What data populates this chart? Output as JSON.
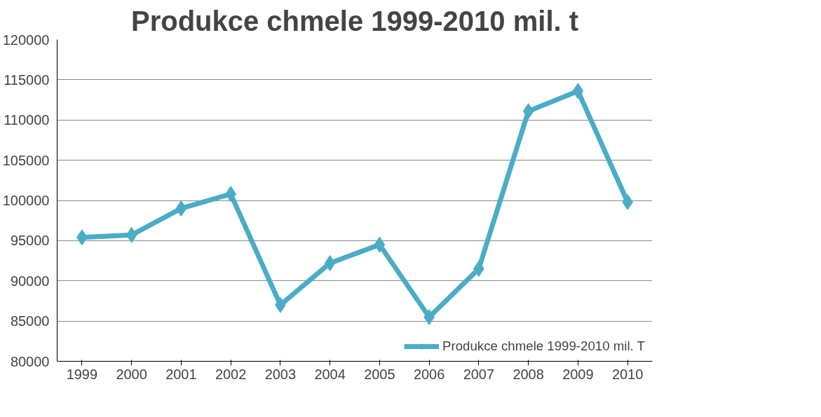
{
  "chart_data": {
    "type": "line",
    "title": "Produkce chmele 1999-2010 mil. t",
    "categories": [
      "1999",
      "2000",
      "2001",
      "2002",
      "2003",
      "2004",
      "2005",
      "2006",
      "2007",
      "2008",
      "2009",
      "2010"
    ],
    "series": [
      {
        "name": "Produkce chmele 1999-2010 mil. T",
        "color": "#4bacc6",
        "values": [
          95400,
          95700,
          99000,
          100800,
          87000,
          92200,
          94500,
          85500,
          91500,
          111100,
          113600,
          99800
        ]
      }
    ],
    "ylim": [
      80000,
      120000
    ],
    "yticks": [
      80000,
      85000,
      90000,
      95000,
      100000,
      105000,
      110000,
      115000,
      120000
    ],
    "grid": "y",
    "legend": "bottom right",
    "marker": "diamond",
    "line_style": "solid"
  }
}
